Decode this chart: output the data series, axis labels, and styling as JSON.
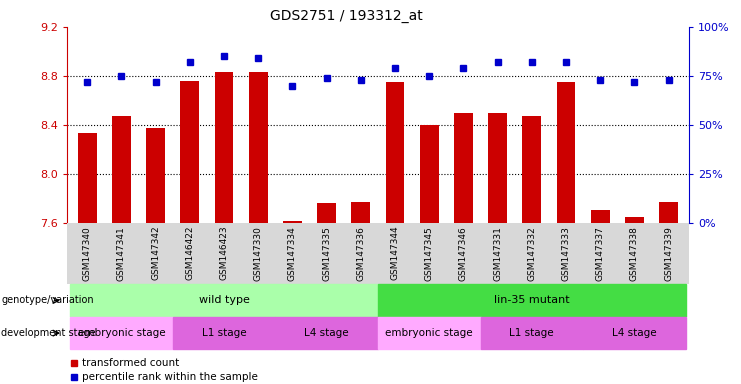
{
  "title": "GDS2751 / 193312_at",
  "samples": [
    "GSM147340",
    "GSM147341",
    "GSM147342",
    "GSM146422",
    "GSM146423",
    "GSM147330",
    "GSM147334",
    "GSM147335",
    "GSM147336",
    "GSM147344",
    "GSM147345",
    "GSM147346",
    "GSM147331",
    "GSM147332",
    "GSM147333",
    "GSM147337",
    "GSM147338",
    "GSM147339"
  ],
  "bar_values": [
    8.33,
    8.47,
    8.37,
    8.76,
    8.83,
    8.83,
    7.61,
    7.76,
    7.77,
    8.75,
    8.4,
    8.5,
    8.5,
    8.47,
    8.75,
    7.7,
    7.65,
    7.77
  ],
  "dot_values": [
    72,
    75,
    72,
    82,
    85,
    84,
    70,
    74,
    73,
    79,
    75,
    79,
    82,
    82,
    82,
    73,
    72,
    73
  ],
  "ylim_left": [
    7.6,
    9.2
  ],
  "ylim_right": [
    0,
    100
  ],
  "yticks_left": [
    7.6,
    8.0,
    8.4,
    8.8,
    9.2
  ],
  "yticks_right": [
    0,
    25,
    50,
    75,
    100
  ],
  "grid_lines": [
    8.8,
    8.4,
    8.0
  ],
  "bar_color": "#cc0000",
  "dot_color": "#0000cc",
  "bar_bottom": 7.6,
  "wild_type_color": "#aaffaa",
  "lin35_color": "#44dd44",
  "embryonic_color": "#ffaaff",
  "l1_color": "#dd66dd",
  "l4_color": "#dd66dd",
  "left_ylabel_color": "#cc0000",
  "right_ylabel_color": "#0000cc",
  "genotype_segments": [
    {
      "label": "wild type",
      "start": 0,
      "end": 9,
      "color": "#aaffaa"
    },
    {
      "label": "lin-35 mutant",
      "start": 9,
      "end": 18,
      "color": "#44dd44"
    }
  ],
  "dev_segments": [
    {
      "label": "embryonic stage",
      "start": 0,
      "end": 3,
      "color": "#ffaaff"
    },
    {
      "label": "L1 stage",
      "start": 3,
      "end": 6,
      "color": "#dd66dd"
    },
    {
      "label": "L4 stage",
      "start": 6,
      "end": 9,
      "color": "#dd66dd"
    },
    {
      "label": "embryonic stage",
      "start": 9,
      "end": 12,
      "color": "#ffaaff"
    },
    {
      "label": "L1 stage",
      "start": 12,
      "end": 15,
      "color": "#dd66dd"
    },
    {
      "label": "L4 stage",
      "start": 15,
      "end": 18,
      "color": "#dd66dd"
    }
  ]
}
